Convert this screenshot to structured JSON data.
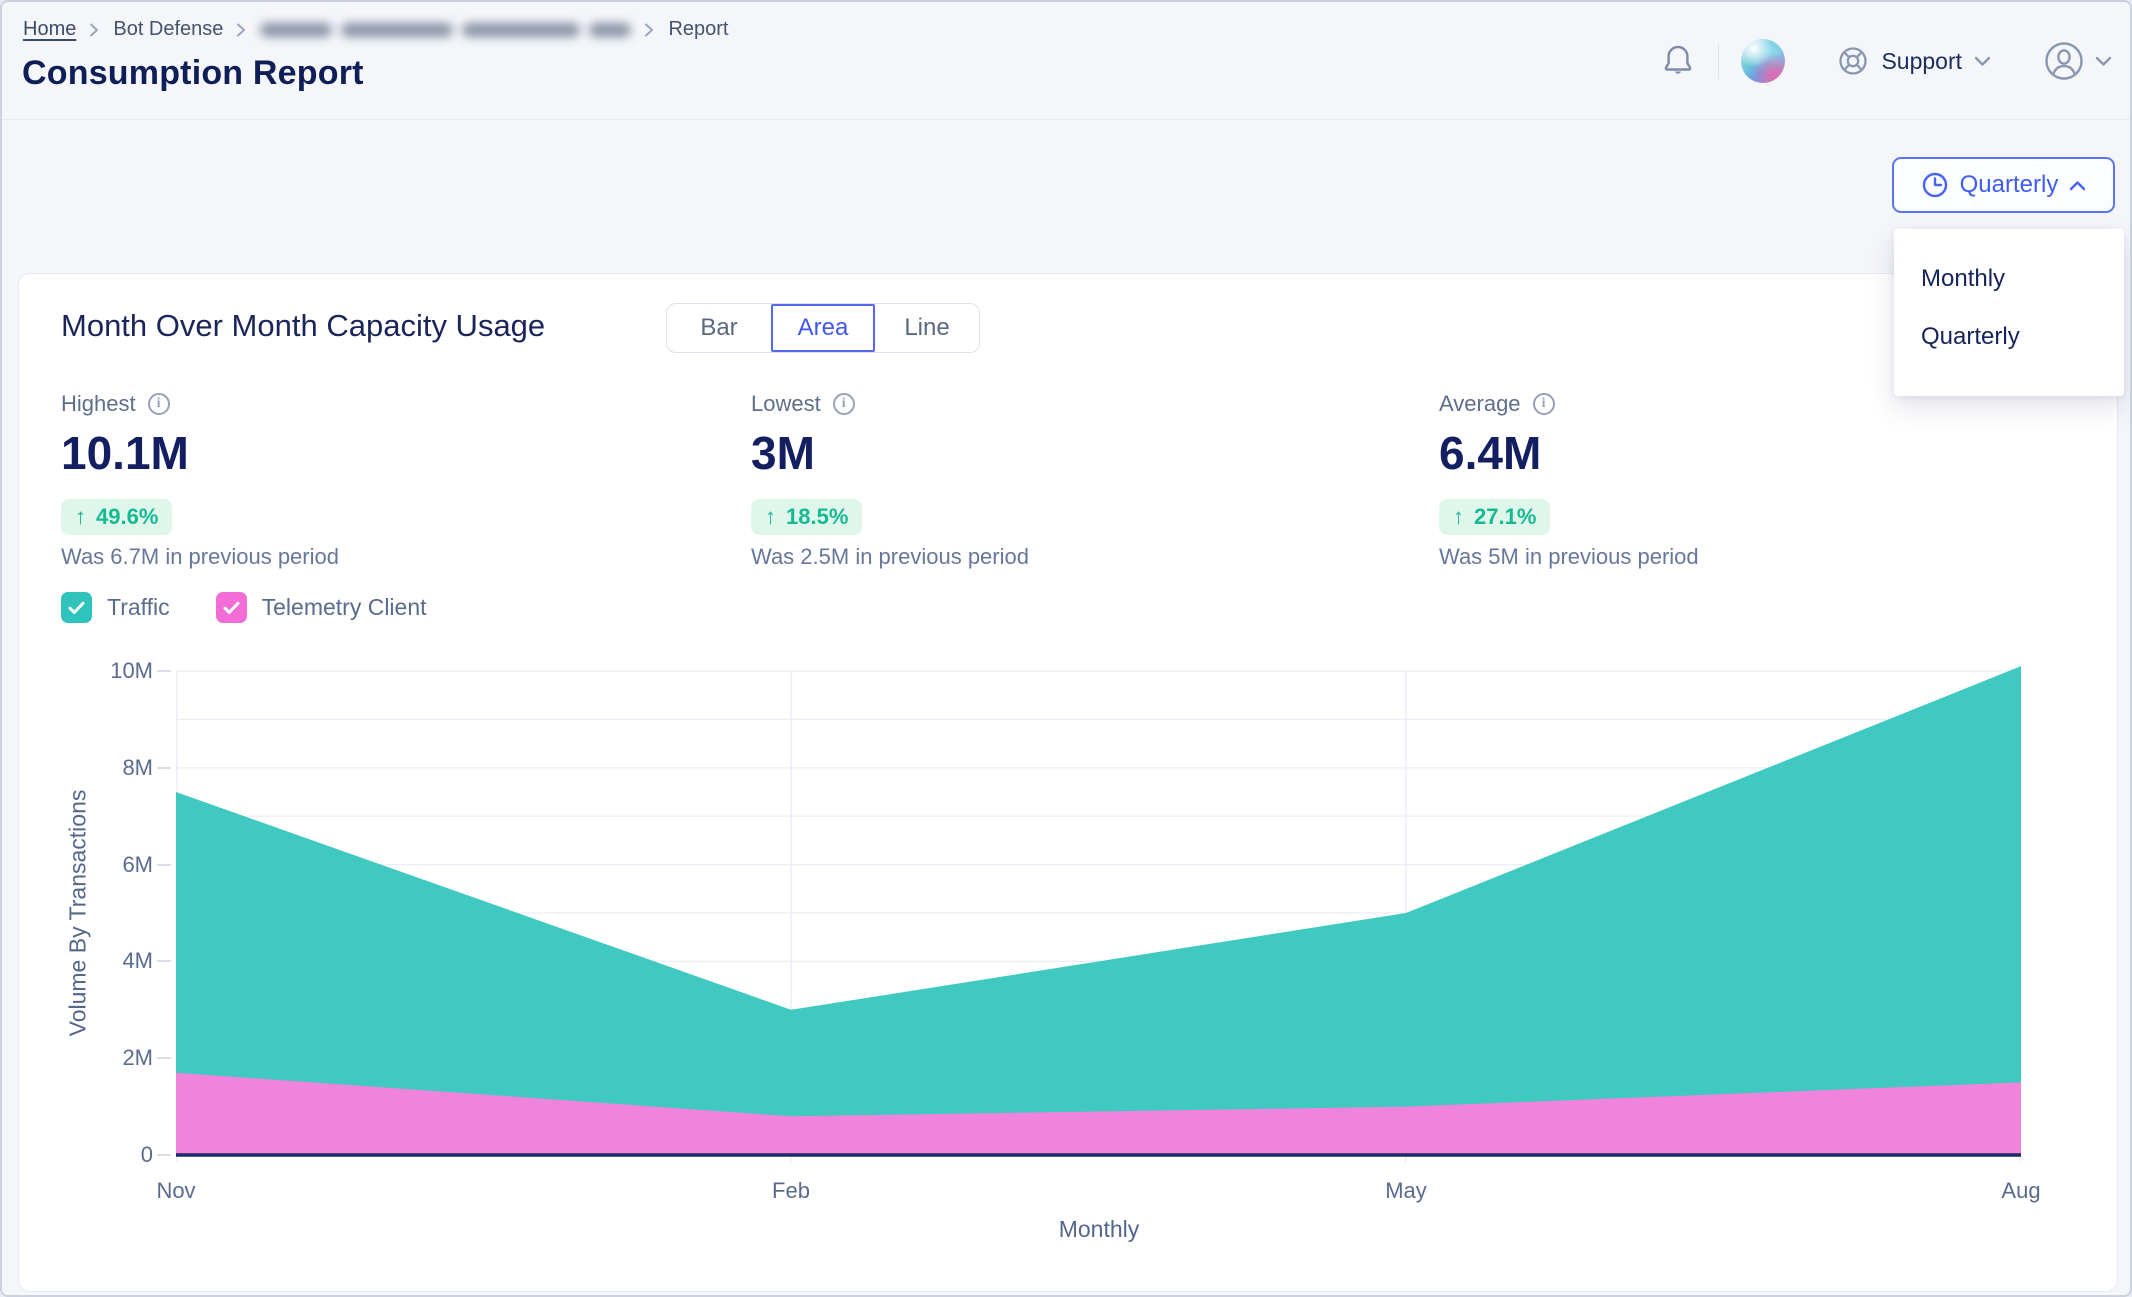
{
  "page": {
    "title": "Consumption Report",
    "breadcrumb": {
      "home": "Home",
      "section": "Bot Defense",
      "redacted": true,
      "current": "Report"
    }
  },
  "header": {
    "support_label": "Support"
  },
  "period_selector": {
    "selected": "Quarterly",
    "options": [
      {
        "label": "Monthly"
      },
      {
        "label": "Quarterly"
      }
    ]
  },
  "icons": {
    "info": "i",
    "up_arrow": "↑"
  },
  "card": {
    "title": "Month Over Month Capacity Usage",
    "view_toggle": {
      "selected": "Area",
      "options": [
        {
          "label": "Bar"
        },
        {
          "label": "Area"
        },
        {
          "label": "Line"
        }
      ]
    },
    "stats": [
      {
        "label": "Highest",
        "value": "10.1M",
        "change": "49.6%",
        "direction": "up",
        "note": "Was 6.7M in previous period"
      },
      {
        "label": "Lowest",
        "value": "3M",
        "change": "18.5%",
        "direction": "up",
        "note": "Was 2.5M in previous period"
      },
      {
        "label": "Average",
        "value": "6.4M",
        "change": "27.1%",
        "direction": "up",
        "note": "Was 5M in previous period"
      }
    ],
    "legend": [
      {
        "label": "Traffic",
        "color": "#2EC4BB",
        "checked": true
      },
      {
        "label": "Telemetry Client",
        "color": "#F26ED6",
        "checked": true
      }
    ]
  },
  "chart_data": {
    "type": "area",
    "categories": [
      "Nov",
      "Feb",
      "May",
      "Aug"
    ],
    "series": [
      {
        "name": "Traffic",
        "color": "#3FC9C1",
        "values": [
          7.5,
          3,
          5,
          10.1
        ],
        "unit": "millions"
      },
      {
        "name": "Telemetry Client",
        "color": "#F083DB",
        "values": [
          1.7,
          0.8,
          1.0,
          1.5
        ],
        "unit": "millions"
      }
    ],
    "xlabel": "Monthly",
    "ylabel": "Volume By Transactions",
    "ylim_millions": [
      0,
      10
    ],
    "yticks_millions": [
      0,
      2,
      4,
      6,
      8,
      10
    ],
    "ytick_labels": [
      "0",
      "2M",
      "4M",
      "6M",
      "8M",
      "10M"
    ],
    "grid": true,
    "grid_color": "#EAEDF5",
    "baseline_color": "#1C2A66",
    "overlapping": true,
    "legend_position": "top-left"
  }
}
